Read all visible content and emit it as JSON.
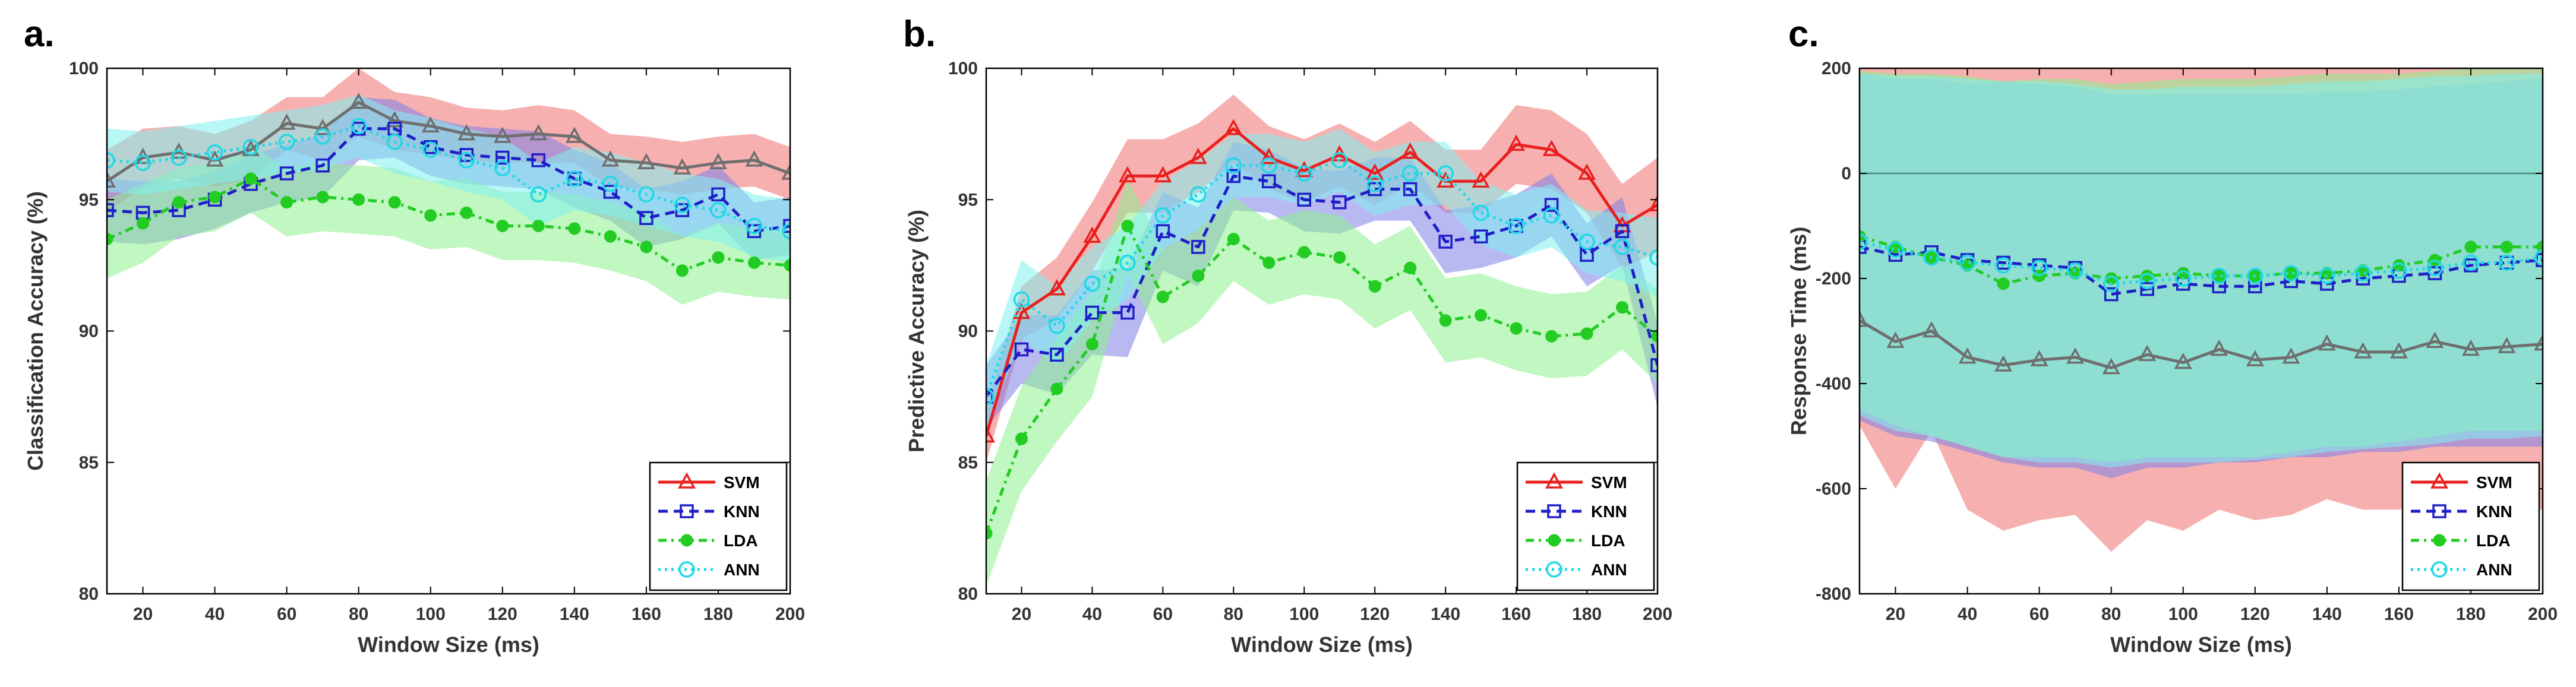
{
  "figure": {
    "legend_labels": [
      "SVM",
      "KNN",
      "LDA",
      "ANN"
    ],
    "colors": {
      "SVM": "#e8201f",
      "KNN": "#1f1fc8",
      "LDA": "#22cc22",
      "ANN": "#22d8e6",
      "gray_line": "#6f6f6f",
      "svm_band": "#f07070",
      "knn_band": "#7f7fe8",
      "lda_band": "#8ef08e",
      "ann_band": "#80f0f0"
    }
  },
  "chart_data": [
    {
      "panel": "a.",
      "type": "line",
      "xlabel": "Window Size (ms)",
      "ylabel": "Classification Accuracy (%)",
      "xlim": [
        10,
        200
      ],
      "ylim": [
        80,
        100
      ],
      "xticks": [
        20,
        40,
        60,
        80,
        100,
        120,
        140,
        160,
        180,
        200
      ],
      "yticks": [
        80,
        85,
        90,
        95,
        100
      ],
      "legend_position": "bottom-right",
      "x": [
        10,
        20,
        30,
        40,
        50,
        60,
        70,
        80,
        90,
        100,
        110,
        120,
        130,
        140,
        150,
        160,
        170,
        180,
        190,
        200
      ],
      "series": [
        {
          "name": "SVM",
          "overlay": "gray",
          "values": [
            95.7,
            96.6,
            96.8,
            96.5,
            96.9,
            97.9,
            97.7,
            98.7,
            98.0,
            97.8,
            97.5,
            97.4,
            97.5,
            97.4,
            96.5,
            96.4,
            96.2,
            96.4,
            96.5,
            96.0
          ],
          "band": [
            1.2,
            1.1,
            1.0,
            1.0,
            1.1,
            1.0,
            1.2,
            1.3,
            1.1,
            1.1,
            1.0,
            1.0,
            1.1,
            1.0,
            1.0,
            1.0,
            1.0,
            1.0,
            1.0,
            1.0
          ]
        },
        {
          "name": "KNN",
          "values": [
            94.6,
            94.5,
            94.6,
            95.0,
            95.6,
            96.0,
            96.3,
            97.7,
            97.7,
            97.0,
            96.7,
            96.6,
            96.5,
            95.8,
            95.3,
            94.3,
            94.6,
            95.2,
            93.8,
            94.0
          ],
          "band": [
            1.2,
            1.2,
            1.1,
            1.1,
            1.1,
            1.1,
            1.2,
            1.2,
            1.1,
            1.1,
            1.1,
            1.1,
            1.1,
            1.1,
            1.1,
            1.1,
            1.1,
            1.1,
            1.1,
            1.1
          ]
        },
        {
          "name": "LDA",
          "values": [
            93.5,
            94.1,
            94.9,
            95.1,
            95.8,
            94.9,
            95.1,
            95.0,
            94.9,
            94.4,
            94.5,
            94.0,
            94.0,
            93.9,
            93.6,
            93.2,
            92.3,
            92.8,
            92.6,
            92.5
          ],
          "band": [
            1.5,
            1.5,
            1.3,
            1.3,
            1.3,
            1.3,
            1.3,
            1.3,
            1.3,
            1.3,
            1.3,
            1.3,
            1.3,
            1.3,
            1.3,
            1.3,
            1.3,
            1.3,
            1.3,
            1.3
          ]
        },
        {
          "name": "ANN",
          "values": [
            96.5,
            96.4,
            96.6,
            96.8,
            97.0,
            97.2,
            97.4,
            97.8,
            97.2,
            96.9,
            96.5,
            96.2,
            95.2,
            95.8,
            95.6,
            95.2,
            94.8,
            94.6,
            94.0,
            93.8
          ],
          "band": [
            1.2,
            1.2,
            1.2,
            1.2,
            1.2,
            1.2,
            1.2,
            1.2,
            1.2,
            1.2,
            1.2,
            1.2,
            1.2,
            1.2,
            1.2,
            1.2,
            1.2,
            1.2,
            1.2,
            1.2
          ]
        }
      ]
    },
    {
      "panel": "b.",
      "type": "line",
      "xlabel": "Window Size (ms)",
      "ylabel": "Predictive Accuracy (%)",
      "xlim": [
        10,
        200
      ],
      "ylim": [
        80,
        100
      ],
      "xticks": [
        20,
        40,
        60,
        80,
        100,
        120,
        140,
        160,
        180,
        200
      ],
      "yticks": [
        80,
        85,
        90,
        95,
        100
      ],
      "legend_position": "bottom-right",
      "x": [
        10,
        20,
        30,
        40,
        50,
        60,
        70,
        80,
        90,
        100,
        110,
        120,
        130,
        140,
        150,
        160,
        170,
        180,
        190,
        200
      ],
      "series": [
        {
          "name": "SVM",
          "values": [
            86.0,
            90.7,
            91.6,
            93.6,
            95.9,
            95.9,
            96.6,
            97.7,
            96.6,
            96.1,
            96.7,
            96.0,
            96.8,
            95.7,
            95.7,
            97.1,
            96.9,
            96.0,
            94.0,
            94.8
          ],
          "band": [
            1.0,
            1.0,
            1.2,
            1.3,
            1.4,
            1.4,
            1.3,
            1.3,
            1.2,
            1.2,
            1.2,
            1.2,
            1.2,
            1.2,
            1.2,
            1.5,
            1.5,
            1.5,
            1.6,
            1.8
          ]
        },
        {
          "name": "KNN",
          "values": [
            87.5,
            89.3,
            89.1,
            90.7,
            90.7,
            93.8,
            93.2,
            95.9,
            95.7,
            95.0,
            94.9,
            95.4,
            95.4,
            93.4,
            93.6,
            94.0,
            94.8,
            92.9,
            93.8,
            88.7
          ],
          "band": [
            1.2,
            1.3,
            1.5,
            1.6,
            1.7,
            1.5,
            1.5,
            1.3,
            1.2,
            1.2,
            1.2,
            1.2,
            1.2,
            1.2,
            1.2,
            1.2,
            1.2,
            1.2,
            1.3,
            1.6
          ]
        },
        {
          "name": "LDA",
          "values": [
            82.3,
            85.9,
            87.8,
            89.5,
            94.0,
            91.3,
            92.1,
            93.5,
            92.6,
            93.0,
            92.8,
            91.7,
            92.4,
            90.4,
            90.6,
            90.1,
            89.8,
            89.9,
            90.9,
            89.8
          ],
          "band": [
            2.0,
            2.0,
            2.0,
            2.0,
            1.8,
            1.8,
            1.8,
            1.6,
            1.6,
            1.6,
            1.6,
            1.6,
            1.6,
            1.6,
            1.6,
            1.6,
            1.6,
            1.6,
            1.6,
            1.8
          ]
        },
        {
          "name": "ANN",
          "values": [
            87.5,
            91.2,
            90.2,
            91.8,
            92.6,
            94.4,
            95.2,
            96.3,
            96.3,
            96.0,
            96.5,
            95.6,
            96.0,
            96.0,
            94.5,
            94.0,
            94.4,
            93.4,
            93.2,
            92.8
          ],
          "band": [
            1.2,
            1.5,
            1.5,
            1.4,
            1.4,
            1.3,
            1.3,
            1.2,
            1.2,
            1.2,
            1.2,
            1.2,
            1.2,
            1.2,
            1.2,
            1.2,
            1.2,
            1.2,
            1.3,
            1.5
          ]
        }
      ]
    },
    {
      "panel": "c.",
      "type": "line",
      "xlabel": "Window Size (ms)",
      "ylabel": "Response Time (ms)",
      "xlim": [
        10,
        200
      ],
      "ylim": [
        -800,
        200
      ],
      "xticks": [
        20,
        40,
        60,
        80,
        100,
        120,
        140,
        160,
        180,
        200
      ],
      "yticks": [
        -800,
        -600,
        -400,
        -200,
        0,
        200
      ],
      "zero_line": 0,
      "legend_position": "bottom-right",
      "x": [
        10,
        20,
        30,
        40,
        50,
        60,
        70,
        80,
        90,
        100,
        110,
        120,
        130,
        140,
        150,
        160,
        170,
        180,
        190,
        200
      ],
      "series": [
        {
          "name": "SVM",
          "overlay": "gray",
          "values": [
            -280,
            -320,
            -300,
            -350,
            -365,
            -355,
            -350,
            -370,
            -345,
            -360,
            -335,
            -355,
            -350,
            -325,
            -340,
            -340,
            -320,
            -335,
            -330,
            -325
          ],
          "band_lower": [
            -480,
            -600,
            -490,
            -640,
            -680,
            -660,
            -650,
            -720,
            -660,
            -680,
            -640,
            -660,
            -650,
            -620,
            -640,
            -640,
            -620,
            -640,
            -640,
            -640
          ],
          "band_upper": [
            200,
            200,
            200,
            200,
            200,
            200,
            200,
            200,
            200,
            200,
            200,
            200,
            200,
            200,
            200,
            200,
            200,
            200,
            200,
            200
          ]
        },
        {
          "name": "KNN",
          "values": [
            -140,
            -155,
            -150,
            -165,
            -170,
            -175,
            -180,
            -230,
            -220,
            -210,
            -215,
            -215,
            -205,
            -210,
            -200,
            -195,
            -190,
            -175,
            -170,
            -165
          ],
          "band_lower": [
            -470,
            -500,
            -510,
            -530,
            -550,
            -560,
            -560,
            -580,
            -560,
            -560,
            -550,
            -550,
            -540,
            -540,
            -530,
            -530,
            -520,
            -520,
            -520,
            -520
          ],
          "band_upper": [
            190,
            180,
            180,
            170,
            175,
            170,
            165,
            150,
            150,
            150,
            150,
            150,
            150,
            155,
            155,
            160,
            165,
            170,
            175,
            180
          ]
        },
        {
          "name": "LDA",
          "values": [
            -120,
            -140,
            -160,
            -175,
            -210,
            -195,
            -190,
            -200,
            -195,
            -190,
            -195,
            -195,
            -190,
            -190,
            -185,
            -175,
            -165,
            -140,
            -140,
            -140
          ],
          "band_lower": [
            -450,
            -480,
            -500,
            -520,
            -540,
            -540,
            -540,
            -550,
            -540,
            -540,
            -540,
            -540,
            -530,
            -520,
            -520,
            -510,
            -500,
            -490,
            -490,
            -490
          ],
          "band_upper": [
            195,
            190,
            190,
            185,
            175,
            180,
            180,
            170,
            175,
            180,
            180,
            180,
            185,
            190,
            190,
            190,
            195,
            200,
            200,
            200
          ]
        },
        {
          "name": "ANN",
          "values": [
            -130,
            -145,
            -160,
            -170,
            -175,
            -180,
            -185,
            -210,
            -205,
            -200,
            -195,
            -195,
            -190,
            -195,
            -190,
            -185,
            -180,
            -170,
            -170,
            -160
          ],
          "band_lower": [
            -460,
            -490,
            -500,
            -520,
            -540,
            -550,
            -550,
            -560,
            -550,
            -550,
            -550,
            -545,
            -540,
            -530,
            -525,
            -520,
            -515,
            -505,
            -505,
            -500
          ],
          "band_upper": [
            190,
            185,
            185,
            180,
            175,
            175,
            170,
            160,
            160,
            165,
            165,
            165,
            170,
            175,
            175,
            180,
            185,
            185,
            190,
            190
          ]
        }
      ]
    }
  ]
}
